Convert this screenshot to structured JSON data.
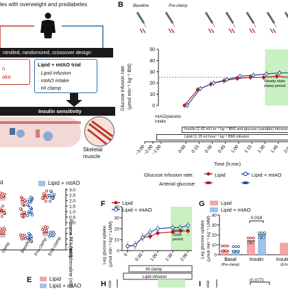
{
  "panelA": {
    "header": "les with overweight and prediabetes",
    "design_banner": "ntrolled, randomized, crossover design",
    "left_box_lines": [
      "n",
      "ake"
    ],
    "right_box": {
      "title": "Lipid + mtAO trial",
      "items": [
        "Lipid infusion",
        "mtAO intake",
        "HI clamp"
      ]
    },
    "insulin_sensitivity": "Insulin sensitivity",
    "skeletal": "Skeletal",
    "muscle": "muscle"
  },
  "panelB": {
    "letter": "B",
    "phases": [
      "Baseline",
      "Pre-clamp"
    ],
    "ylabel_line1": "Glucose infusion rate",
    "ylabel_line2": "(µmol min⁻¹ kg⁻¹ BM)",
    "y_ticks": [
      "50",
      "40",
      "30",
      "20",
      "10",
      "0"
    ],
    "steady_state": "Steady-state clamp period",
    "mtao_intake": "mtAO/placebo intake",
    "insulin_bar": "Insulin (1.42 mU m⁻² kg⁻¹ BM) and glucose (variable) infusion",
    "lipid_bar": "Lipid (1.15 ml hour⁻¹ kg⁻¹ BM) infusion",
    "x_ticks": [
      "−3:00",
      "−2:00",
      "−1:00",
      "0:00",
      "0:15",
      "0:30",
      "0:45",
      "1:00",
      "1:15",
      "1:30",
      "1:45",
      "2:00"
    ],
    "xlabel": "Time (h:min)",
    "legend_gir_label": "Glucose infusion rate:",
    "legend_art_label": "Arterial glucose:",
    "legend_lipid": "Lipid",
    "legend_mtao": "Lipid + mtAO",
    "colors": {
      "lipid": "#b22222",
      "mtao": "#1f4e9c",
      "steady": "#c8f0c0"
    },
    "chart_data": {
      "type": "line",
      "title": "",
      "xlabel": "Time (h:min)",
      "ylabel": "Glucose infusion rate (µmol min⁻¹ kg⁻¹ BM)",
      "x": [
        "0:00",
        "0:15",
        "0:30",
        "0:45",
        "1:00",
        "1:15",
        "1:30",
        "1:45",
        "2:00"
      ],
      "ylim": [
        0,
        50
      ],
      "series": [
        {
          "name": "Lipid",
          "values": [
            0,
            14,
            19,
            22,
            24,
            25,
            25,
            26,
            25
          ]
        },
        {
          "name": "Lipid + mtAO",
          "values": [
            0,
            15,
            20,
            23,
            26,
            27,
            28,
            29,
            29
          ]
        }
      ]
    }
  },
  "panelD": {
    "legend_mtao": "Lipid + mtAO",
    "right_label_top": "Plasma FFA (mM)",
    "right_ticks_top": [
      "3.0",
      "2.5",
      "2.0",
      "1.5",
      "1.0",
      "0.5",
      "0.0"
    ],
    "right_label_bottom": "Noradrenaline (nM)",
    "right_ticks_bottom": [
      "4",
      "3",
      "2",
      "1",
      "0"
    ],
    "x_ticks": [
      "Baseline",
      "Pre-clamp",
      "End-clamp"
    ],
    "partial_ticks": [
      "clamp",
      "clamp"
    ]
  },
  "panelE": {
    "letter": "E",
    "legend_lipid": "Lipid",
    "legend_mtao": "Lipid + mtAO"
  },
  "panelF": {
    "letter": "F",
    "legend_lipid": "Lipid",
    "legend_mtao": "Lipid + mtAO",
    "ylabel_line1": "Leg glucose uptake",
    "ylabel_line2": "(µmol min⁻¹ kg⁻¹ LMM)",
    "y_ticks": [
      "40",
      "30",
      "20",
      "10",
      "0"
    ],
    "steady": "Steady state period",
    "x_ticks": [
      "0",
      "0:30",
      "1:00",
      "1:30",
      "2:00"
    ],
    "hi_clamp": "HI clamp",
    "lipid_infusion": "Lipid infusion",
    "chart_data": {
      "type": "line",
      "title": "",
      "xlabel": "",
      "ylabel": "Leg glucose uptake (µmol min⁻¹ kg⁻¹ LMM)",
      "x": [
        "0",
        "0:15",
        "0:30",
        "0:45",
        "1:00",
        "1:30",
        "1:45",
        "2:00"
      ],
      "ylim": [
        0,
        40
      ],
      "series": [
        {
          "name": "Lipid",
          "values": [
            4,
            5,
            12,
            13,
            16,
            17,
            18,
            18
          ]
        },
        {
          "name": "Lipid + mtAO",
          "values": [
            4,
            5,
            12,
            17,
            20,
            21,
            21,
            23
          ]
        }
      ]
    }
  },
  "panelG": {
    "letter": "G",
    "legend_lipid": "Lipid",
    "legend_mtao": "Lipid + mtAO",
    "ylabel_line1": "Leg glucose uptake",
    "ylabel_line2": "(µmol min⁻¹ kg⁻¹ LMM)",
    "y_ticks": [
      "40",
      "30",
      "20",
      "10",
      "0"
    ],
    "pvalue": "0.018",
    "categories": [
      "Basal",
      "Insulin",
      "Insulin−"
    ],
    "sublabels": [
      "(Pre-clamp)",
      "",
      "(Δ fro"
    ],
    "colors": {
      "lipid": "#f4a6a6",
      "mtao": "#9ec3ec"
    },
    "chart_data": {
      "type": "bar",
      "title": "",
      "ylabel": "Leg glucose uptake (µmol min⁻¹ kg⁻¹ LMM)",
      "categories": [
        "Basal",
        "Insulin"
      ],
      "ylim": [
        0,
        40
      ],
      "series": [
        {
          "name": "Lipid",
          "values": [
            4,
            14
          ]
        },
        {
          "name": "Lipid + mtAO",
          "values": [
            4,
            20
          ]
        }
      ]
    }
  },
  "panelH": {
    "letter": "H",
    "ylabel": "ose"
  },
  "panelI": {
    "letter": "I",
    "ylabel": "ose",
    "pvalue": "(0.077)"
  }
}
